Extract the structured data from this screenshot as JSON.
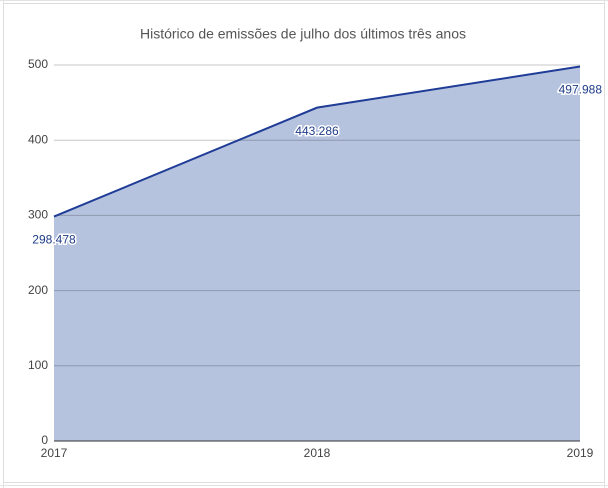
{
  "chart_data": {
    "type": "area",
    "title": "Histórico de emissões de julho dos últimos três anos",
    "categories": [
      "2017",
      "2018",
      "2019"
    ],
    "values": [
      298.478,
      443.286,
      497.988
    ],
    "color": "#1f3c96",
    "fill": "#b6c3df",
    "ylim": [
      0,
      500
    ],
    "yticks": [
      0,
      100,
      200,
      300,
      400,
      500
    ],
    "grid": true
  }
}
